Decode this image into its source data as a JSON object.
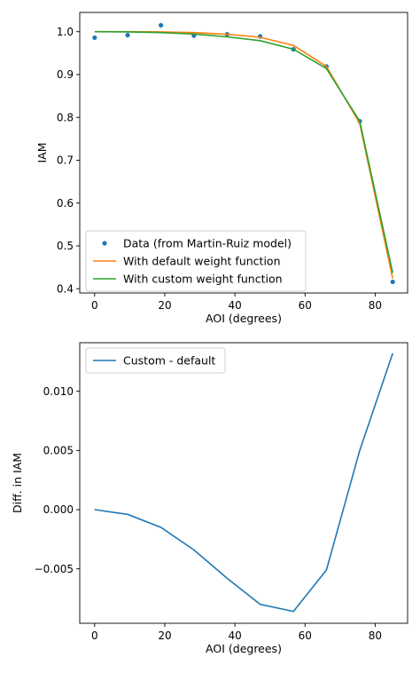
{
  "chart_data": [
    {
      "type": "line",
      "xlabel": "AOI (degrees)",
      "ylabel": "IAM",
      "xlim": [
        -4.25,
        89.25
      ],
      "ylim": [
        0.39,
        1.045
      ],
      "xticks": [
        0,
        20,
        40,
        60,
        80
      ],
      "yticks": [
        0.4,
        0.5,
        0.6,
        0.7,
        0.8,
        0.9,
        1.0
      ],
      "ytick_labels": [
        "0.4",
        "0.5",
        "0.6",
        "0.7",
        "0.8",
        "0.9",
        "1.0"
      ],
      "legend_position": "lower-left",
      "grid": false,
      "series": [
        {
          "name": "Data (from Martin-Ruiz model)",
          "kind": "scatter",
          "color": "#1f77b4",
          "x": [
            0,
            9.4,
            18.9,
            28.3,
            37.8,
            47.2,
            56.7,
            66.1,
            75.6,
            85
          ],
          "y": [
            0.986,
            0.992,
            1.015,
            0.991,
            0.994,
            0.989,
            0.959,
            0.919,
            0.791,
            0.416
          ]
        },
        {
          "name": "With default weight function",
          "kind": "line",
          "color": "#ff7f0e",
          "x": [
            0,
            9.4,
            18.9,
            28.3,
            37.8,
            47.2,
            56.7,
            66.1,
            75.6,
            85
          ],
          "y": [
            1.0,
            1.0,
            0.9995,
            0.998,
            0.994,
            0.987,
            0.968,
            0.919,
            0.786,
            0.424
          ]
        },
        {
          "name": "With custom weight function",
          "kind": "line",
          "color": "#2ca02c",
          "x": [
            0,
            9.4,
            18.9,
            28.3,
            37.8,
            47.2,
            56.7,
            66.1,
            75.6,
            85
          ],
          "y": [
            1.0,
            0.9996,
            0.998,
            0.9945,
            0.988,
            0.979,
            0.959,
            0.914,
            0.791,
            0.437
          ]
        }
      ]
    },
    {
      "type": "line",
      "xlabel": "AOI (degrees)",
      "ylabel": "Diff. in IAM",
      "xlim": [
        -4.25,
        89.25
      ],
      "ylim": [
        -0.0096,
        0.0141
      ],
      "xticks": [
        0,
        20,
        40,
        60,
        80
      ],
      "yticks": [
        -0.005,
        0.0,
        0.005,
        0.01
      ],
      "ytick_labels": [
        "−0.005",
        "0.000",
        "0.005",
        "0.010"
      ],
      "legend_position": "upper-left",
      "grid": false,
      "series": [
        {
          "name": "Custom - default",
          "kind": "line",
          "color": "#1f77b4",
          "x": [
            0,
            9.4,
            18.9,
            28.3,
            37.8,
            47.2,
            56.7,
            66.1,
            75.6,
            85
          ],
          "y": [
            0.0,
            -0.0004,
            -0.0015,
            -0.0034,
            -0.0058,
            -0.008,
            -0.0086,
            -0.0051,
            0.005,
            0.0132
          ]
        }
      ]
    }
  ]
}
